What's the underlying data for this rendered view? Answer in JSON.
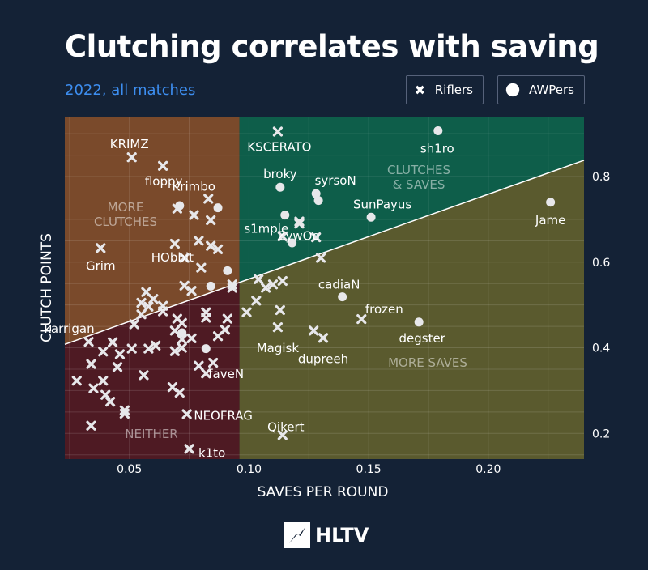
{
  "header": {
    "title": "Clutching correlates with saving",
    "subtitle": "2022, all matches"
  },
  "legend": {
    "riflers": "Riflers",
    "awpers": "AWPers"
  },
  "brand": "HLTV",
  "colors": {
    "background": "#142236",
    "more_clutches": "#7a4a2b",
    "clutches_and_saves": "#0e5e4a",
    "more_saves": "#5a5a2e",
    "neither": "#4e1a23",
    "marker": "#e7e7ea",
    "subtitle": "#3d8ef0"
  },
  "chart_data": {
    "type": "scatter",
    "title": "Clutching correlates with saving",
    "subtitle": "2022, all matches",
    "xlabel": "SAVES PER ROUND",
    "ylabel": "CLUTCH POINTS",
    "xlim": [
      0.023,
      0.24
    ],
    "ylim": [
      0.14,
      0.94
    ],
    "xticks": [
      "0.05",
      "0.10",
      "0.15",
      "0.20"
    ],
    "yticks": [
      "0.2",
      "0.4",
      "0.6",
      "0.8"
    ],
    "x_split": 0.096,
    "trend_line": {
      "x": [
        0.023,
        0.24
      ],
      "y": [
        0.408,
        0.838
      ]
    },
    "quadrant_labels": {
      "more_clutches": "MORE\nCLUTCHES",
      "clutches_and_saves": "CLUTCHES\n& SAVES",
      "more_saves": "MORE SAVES",
      "neither": "NEITHER"
    },
    "legend_position": "top-right",
    "grid": true,
    "series": [
      {
        "name": "Riflers",
        "marker": "x",
        "points": [
          {
            "x": 0.051,
            "y": 0.845,
            "label": "KRIMZ"
          },
          {
            "x": 0.064,
            "y": 0.825,
            "label": "floppy"
          },
          {
            "x": 0.112,
            "y": 0.905,
            "label": "KSCERATO"
          },
          {
            "x": 0.083,
            "y": 0.748,
            "label": "Krimbo"
          },
          {
            "x": 0.038,
            "y": 0.633,
            "label": "Grim"
          },
          {
            "x": 0.069,
            "y": 0.643,
            "label": "HObbit"
          },
          {
            "x": 0.121,
            "y": 0.695,
            "label": "ZywOo"
          },
          {
            "x": 0.033,
            "y": 0.414,
            "label": "karrigan"
          },
          {
            "x": 0.112,
            "y": 0.448,
            "label": "Magisk"
          },
          {
            "x": 0.131,
            "y": 0.423,
            "label": "dupreeh"
          },
          {
            "x": 0.147,
            "y": 0.467,
            "label": "frozen"
          },
          {
            "x": 0.085,
            "y": 0.365,
            "label": "faveN"
          },
          {
            "x": 0.074,
            "y": 0.245,
            "label": "NEOFRAG"
          },
          {
            "x": 0.114,
            "y": 0.196,
            "label": "Qikert"
          },
          {
            "x": 0.075,
            "y": 0.164,
            "label": "k1to"
          },
          {
            "x": 0.07,
            "y": 0.725
          },
          {
            "x": 0.077,
            "y": 0.71
          },
          {
            "x": 0.084,
            "y": 0.698
          },
          {
            "x": 0.079,
            "y": 0.65
          },
          {
            "x": 0.084,
            "y": 0.638
          },
          {
            "x": 0.087,
            "y": 0.63
          },
          {
            "x": 0.073,
            "y": 0.61
          },
          {
            "x": 0.08,
            "y": 0.587
          },
          {
            "x": 0.073,
            "y": 0.545
          },
          {
            "x": 0.076,
            "y": 0.533
          },
          {
            "x": 0.093,
            "y": 0.548
          },
          {
            "x": 0.093,
            "y": 0.54
          },
          {
            "x": 0.057,
            "y": 0.53
          },
          {
            "x": 0.06,
            "y": 0.514
          },
          {
            "x": 0.055,
            "y": 0.505
          },
          {
            "x": 0.058,
            "y": 0.496
          },
          {
            "x": 0.064,
            "y": 0.498
          },
          {
            "x": 0.064,
            "y": 0.485
          },
          {
            "x": 0.055,
            "y": 0.478
          },
          {
            "x": 0.052,
            "y": 0.455
          },
          {
            "x": 0.07,
            "y": 0.468
          },
          {
            "x": 0.072,
            "y": 0.458
          },
          {
            "x": 0.082,
            "y": 0.483
          },
          {
            "x": 0.082,
            "y": 0.47
          },
          {
            "x": 0.091,
            "y": 0.468
          },
          {
            "x": 0.09,
            "y": 0.442
          },
          {
            "x": 0.087,
            "y": 0.427
          },
          {
            "x": 0.072,
            "y": 0.42
          },
          {
            "x": 0.069,
            "y": 0.44
          },
          {
            "x": 0.076,
            "y": 0.422
          },
          {
            "x": 0.069,
            "y": 0.392
          },
          {
            "x": 0.072,
            "y": 0.4
          },
          {
            "x": 0.061,
            "y": 0.405
          },
          {
            "x": 0.058,
            "y": 0.398
          },
          {
            "x": 0.051,
            "y": 0.398
          },
          {
            "x": 0.043,
            "y": 0.413
          },
          {
            "x": 0.039,
            "y": 0.391
          },
          {
            "x": 0.034,
            "y": 0.362
          },
          {
            "x": 0.046,
            "y": 0.385
          },
          {
            "x": 0.045,
            "y": 0.355
          },
          {
            "x": 0.028,
            "y": 0.323
          },
          {
            "x": 0.035,
            "y": 0.305
          },
          {
            "x": 0.039,
            "y": 0.323
          },
          {
            "x": 0.04,
            "y": 0.29
          },
          {
            "x": 0.042,
            "y": 0.274
          },
          {
            "x": 0.048,
            "y": 0.254
          },
          {
            "x": 0.048,
            "y": 0.246
          },
          {
            "x": 0.056,
            "y": 0.336
          },
          {
            "x": 0.034,
            "y": 0.218
          },
          {
            "x": 0.068,
            "y": 0.308
          },
          {
            "x": 0.071,
            "y": 0.295
          },
          {
            "x": 0.079,
            "y": 0.358
          },
          {
            "x": 0.082,
            "y": 0.34
          },
          {
            "x": 0.104,
            "y": 0.56
          },
          {
            "x": 0.107,
            "y": 0.54
          },
          {
            "x": 0.11,
            "y": 0.548
          },
          {
            "x": 0.114,
            "y": 0.556
          },
          {
            "x": 0.103,
            "y": 0.51
          },
          {
            "x": 0.099,
            "y": 0.483
          },
          {
            "x": 0.113,
            "y": 0.488
          },
          {
            "x": 0.121,
            "y": 0.69
          },
          {
            "x": 0.114,
            "y": 0.66
          },
          {
            "x": 0.128,
            "y": 0.658
          },
          {
            "x": 0.13,
            "y": 0.61
          },
          {
            "x": 0.127,
            "y": 0.44
          }
        ]
      },
      {
        "name": "AWPers",
        "marker": "circle",
        "points": [
          {
            "x": 0.179,
            "y": 0.907,
            "label": "sh1ro"
          },
          {
            "x": 0.113,
            "y": 0.775,
            "label": "broky"
          },
          {
            "x": 0.128,
            "y": 0.76,
            "label": "syrsoN"
          },
          {
            "x": 0.151,
            "y": 0.705,
            "label": "SunPayus"
          },
          {
            "x": 0.226,
            "y": 0.74,
            "label": "Jame"
          },
          {
            "x": 0.115,
            "y": 0.71,
            "label": "s1mple"
          },
          {
            "x": 0.139,
            "y": 0.519,
            "label": "cadiaN"
          },
          {
            "x": 0.171,
            "y": 0.46,
            "label": "degster"
          },
          {
            "x": 0.071,
            "y": 0.732
          },
          {
            "x": 0.087,
            "y": 0.727
          },
          {
            "x": 0.129,
            "y": 0.744
          },
          {
            "x": 0.118,
            "y": 0.645
          },
          {
            "x": 0.091,
            "y": 0.58
          },
          {
            "x": 0.084,
            "y": 0.544
          },
          {
            "x": 0.082,
            "y": 0.398
          },
          {
            "x": 0.072,
            "y": 0.435
          }
        ]
      }
    ]
  }
}
